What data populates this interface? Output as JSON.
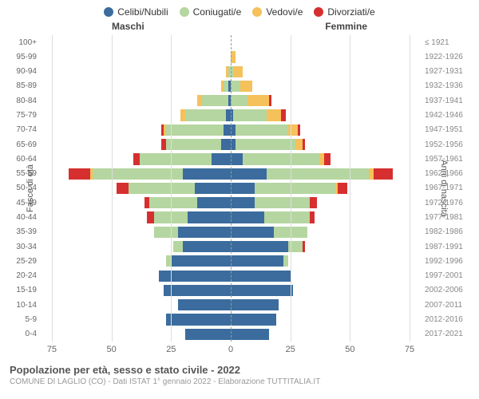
{
  "chart": {
    "type": "population-pyramid",
    "legend": [
      {
        "label": "Celibi/Nubili",
        "color": "#3b6c9d"
      },
      {
        "label": "Coniugati/e",
        "color": "#b5d6a0"
      },
      {
        "label": "Vedovi/e",
        "color": "#f5c15b"
      },
      {
        "label": "Divorziati/e",
        "color": "#d62f2f"
      }
    ],
    "male_header": "Maschi",
    "female_header": "Femmine",
    "y_title_left": "Fasce di età",
    "y_title_right": "Anni di nascita",
    "x_max": 80,
    "x_ticks": [
      75,
      50,
      25,
      0,
      25,
      50,
      75
    ],
    "grid_color": "#dddddd",
    "center_line_color": "#999999",
    "background_color": "#ffffff",
    "label_fontsize": 10,
    "rows": [
      {
        "age": "100+",
        "year": "≤ 1921",
        "male": [
          0,
          0,
          0,
          0
        ],
        "female": [
          0,
          0,
          0,
          0
        ]
      },
      {
        "age": "95-99",
        "year": "1922-1926",
        "male": [
          0,
          0,
          0,
          0
        ],
        "female": [
          0,
          0,
          2,
          0
        ]
      },
      {
        "age": "90-94",
        "year": "1927-1931",
        "male": [
          0,
          1,
          1,
          0
        ],
        "female": [
          0,
          1,
          4,
          0
        ]
      },
      {
        "age": "85-89",
        "year": "1932-1936",
        "male": [
          1,
          2,
          1,
          0
        ],
        "female": [
          0,
          4,
          5,
          0
        ]
      },
      {
        "age": "80-84",
        "year": "1937-1941",
        "male": [
          1,
          11,
          2,
          0
        ],
        "female": [
          0,
          7,
          9,
          1
        ]
      },
      {
        "age": "75-79",
        "year": "1942-1946",
        "male": [
          2,
          17,
          2,
          0
        ],
        "female": [
          1,
          14,
          6,
          2
        ]
      },
      {
        "age": "70-74",
        "year": "1947-1951",
        "male": [
          3,
          24,
          1,
          1
        ],
        "female": [
          2,
          22,
          4,
          1
        ]
      },
      {
        "age": "65-69",
        "year": "1952-1956",
        "male": [
          4,
          23,
          0,
          2
        ],
        "female": [
          2,
          25,
          3,
          1
        ]
      },
      {
        "age": "60-64",
        "year": "1957-1961",
        "male": [
          8,
          30,
          0,
          3
        ],
        "female": [
          5,
          32,
          2,
          3
        ]
      },
      {
        "age": "55-59",
        "year": "1962-1966",
        "male": [
          20,
          38,
          1,
          9
        ],
        "female": [
          15,
          43,
          2,
          8
        ]
      },
      {
        "age": "50-54",
        "year": "1967-1971",
        "male": [
          15,
          28,
          0,
          5
        ],
        "female": [
          10,
          34,
          1,
          4
        ]
      },
      {
        "age": "45-49",
        "year": "1972-1976",
        "male": [
          14,
          20,
          0,
          2
        ],
        "female": [
          10,
          23,
          0,
          3
        ]
      },
      {
        "age": "40-44",
        "year": "1977-1981",
        "male": [
          18,
          14,
          0,
          3
        ],
        "female": [
          14,
          19,
          0,
          2
        ]
      },
      {
        "age": "35-39",
        "year": "1982-1986",
        "male": [
          22,
          10,
          0,
          0
        ],
        "female": [
          18,
          14,
          0,
          0
        ]
      },
      {
        "age": "30-34",
        "year": "1987-1991",
        "male": [
          20,
          4,
          0,
          0
        ],
        "female": [
          24,
          6,
          0,
          1
        ]
      },
      {
        "age": "25-29",
        "year": "1992-1996",
        "male": [
          25,
          2,
          0,
          0
        ],
        "female": [
          22,
          2,
          0,
          0
        ]
      },
      {
        "age": "20-24",
        "year": "1997-2001",
        "male": [
          30,
          0,
          0,
          0
        ],
        "female": [
          25,
          0,
          0,
          0
        ]
      },
      {
        "age": "15-19",
        "year": "2002-2006",
        "male": [
          28,
          0,
          0,
          0
        ],
        "female": [
          26,
          0,
          0,
          0
        ]
      },
      {
        "age": "10-14",
        "year": "2007-2011",
        "male": [
          22,
          0,
          0,
          0
        ],
        "female": [
          20,
          0,
          0,
          0
        ]
      },
      {
        "age": "5-9",
        "year": "2012-2016",
        "male": [
          27,
          0,
          0,
          0
        ],
        "female": [
          19,
          0,
          0,
          0
        ]
      },
      {
        "age": "0-4",
        "year": "2017-2021",
        "male": [
          19,
          0,
          0,
          0
        ],
        "female": [
          16,
          0,
          0,
          0
        ]
      }
    ],
    "title": "Popolazione per età, sesso e stato civile - 2022",
    "subtitle": "COMUNE DI LAGLIO (CO) - Dati ISTAT 1° gennaio 2022 - Elaborazione TUTTITALIA.IT"
  }
}
